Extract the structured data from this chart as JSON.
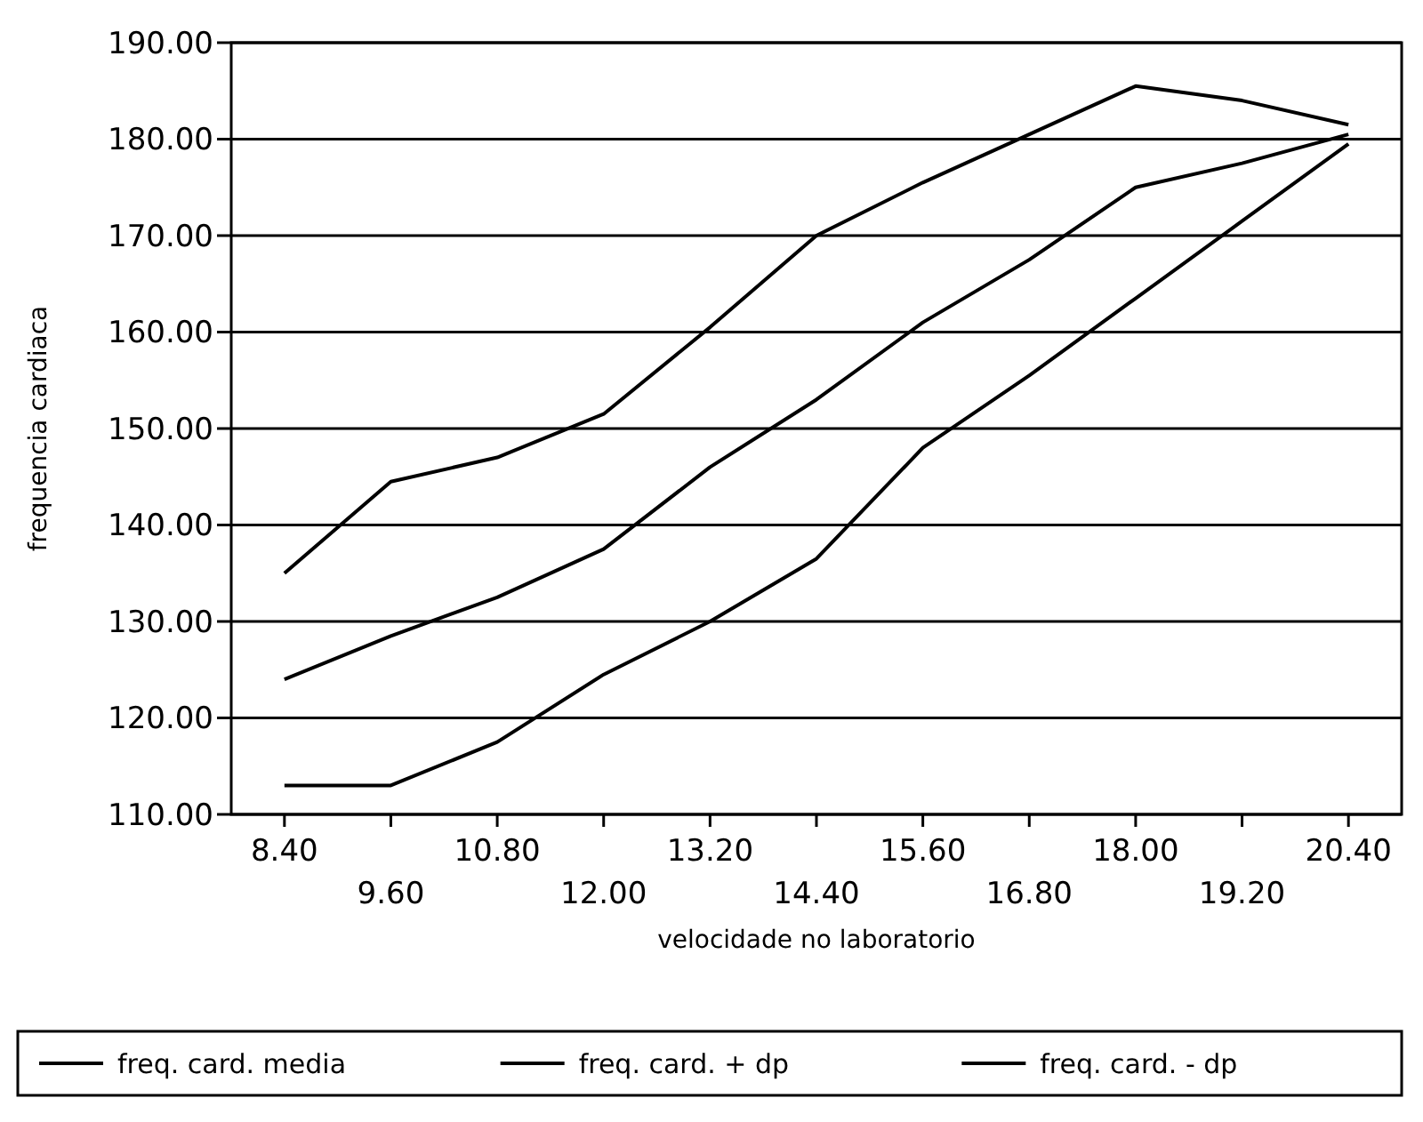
{
  "chart_data": {
    "type": "line",
    "xlabel": "velocidade no laboratorio",
    "ylabel": "frequencia cardiaca",
    "categories": [
      "8.40",
      "9.60",
      "10.80",
      "12.00",
      "13.20",
      "14.40",
      "15.60",
      "16.80",
      "18.00",
      "19.20",
      "20.40"
    ],
    "series": [
      {
        "name": "freq. card. media",
        "color": "#000000",
        "values": [
          124,
          128.5,
          132.5,
          137.5,
          146,
          153,
          161,
          167.5,
          175,
          177.5,
          180.5
        ]
      },
      {
        "name": "freq. card. + dp",
        "color": "#000000",
        "values": [
          135,
          144.5,
          147,
          151.5,
          160.5,
          170,
          175.5,
          180.5,
          185.5,
          184,
          181.5
        ]
      },
      {
        "name": "freq. card. - dp",
        "color": "#000000",
        "values": [
          113,
          113,
          117.5,
          124.5,
          130,
          136.5,
          148,
          155.5,
          163.5,
          171.5,
          179.5
        ]
      }
    ],
    "ylim": [
      110,
      190
    ],
    "yticks": [
      {
        "value": 110,
        "label": "110.00"
      },
      {
        "value": 120,
        "label": "120.00"
      },
      {
        "value": 130,
        "label": "130.00"
      },
      {
        "value": 140,
        "label": "140.00"
      },
      {
        "value": 150,
        "label": "150.00"
      },
      {
        "value": 160,
        "label": "160.00"
      },
      {
        "value": 170,
        "label": "170.00"
      },
      {
        "value": 180,
        "label": "180.00"
      },
      {
        "value": 190,
        "label": "190.00"
      }
    ],
    "grid": "y",
    "legend": "bottom",
    "marker": "none",
    "line_style": "solid"
  }
}
